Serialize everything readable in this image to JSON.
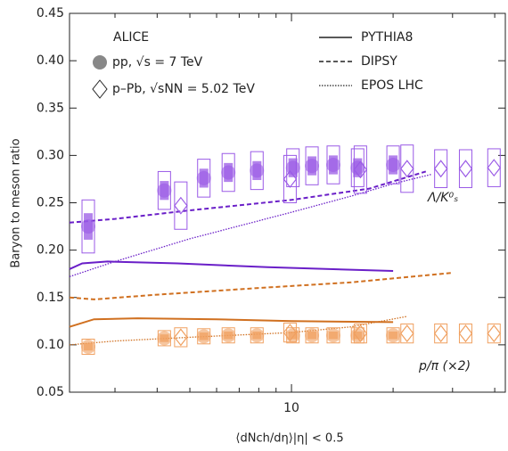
{
  "chart_data": {
    "type": "scatter",
    "y_label": "Baryon to meson ratio",
    "x_label": "⟨dNch/dη⟩|η| < 0.5",
    "experiment": "ALICE",
    "log_x": true,
    "xlim": [
      2.2,
      43
    ],
    "xticks": [
      10
    ],
    "xminor": [
      3,
      4,
      5,
      6,
      7,
      8,
      9,
      20,
      30,
      40
    ],
    "ylim": [
      0.05,
      0.45
    ],
    "yticks": [
      0.05,
      {
        "value": 0.1,
        "label": "0.10"
      },
      0.15,
      {
        "value": 0.2,
        "label": "0.20"
      },
      0.25,
      {
        "value": 0.3,
        "label": "0.30"
      },
      0.35,
      {
        "value": 0.4,
        "label": "0.40"
      },
      0.45
    ],
    "systems": [
      {
        "name": "pp, √s = 7 TeV",
        "marker": "circle"
      },
      {
        "name": "p–Pb, √sNN = 5.02 TeV",
        "marker": "diamond"
      }
    ],
    "ratios": [
      {
        "label": "Λ/K⁰ₛ",
        "color": "#9a5ae6",
        "line_color": "#6a1fc8"
      },
      {
        "label": "p/π (×2)",
        "color": "#f0a060",
        "line_color": "#d07020"
      }
    ],
    "series": [
      {
        "system": 0,
        "ratio": 0,
        "x": [
          2.5,
          4.2,
          5.5,
          6.5,
          7.9,
          10.1,
          11.5,
          13.3,
          15.7,
          20.0
        ],
        "values": [
          0.225,
          0.263,
          0.276,
          0.282,
          0.284,
          0.287,
          0.289,
          0.29,
          0.287,
          0.29
        ],
        "sys": [
          0.028,
          0.02,
          0.02,
          0.02,
          0.02,
          0.02,
          0.02,
          0.02,
          0.02,
          0.02
        ]
      },
      {
        "system": 1,
        "ratio": 0,
        "x": [
          4.7,
          9.9,
          16.0,
          22.0,
          27.7,
          32.8,
          39.8
        ],
        "values": [
          0.247,
          0.275,
          0.285,
          0.286,
          0.286,
          0.286,
          0.287
        ],
        "sys": [
          0.025,
          0.025,
          0.025,
          0.025,
          0.02,
          0.02,
          0.02
        ]
      },
      {
        "system": 0,
        "ratio": 1,
        "x": [
          2.5,
          4.2,
          5.5,
          6.5,
          7.9,
          10.1,
          11.5,
          13.3,
          15.7,
          20.0
        ],
        "values": [
          0.098,
          0.107,
          0.109,
          0.11,
          0.11,
          0.11,
          0.11,
          0.11,
          0.11,
          0.11
        ],
        "sys": [
          0.008,
          0.008,
          0.008,
          0.008,
          0.008,
          0.008,
          0.008,
          0.008,
          0.008,
          0.008
        ]
      },
      {
        "system": 1,
        "ratio": 1,
        "x": [
          4.7,
          9.9,
          16.0,
          22.0,
          27.7,
          32.8,
          39.8
        ],
        "values": [
          0.108,
          0.113,
          0.112,
          0.112,
          0.112,
          0.112,
          0.112
        ],
        "sys": [
          0.01,
          0.01,
          0.01,
          0.01,
          0.01,
          0.01,
          0.01
        ]
      }
    ],
    "models": [
      {
        "name": "PYTHIA8",
        "dash": "none"
      },
      {
        "name": "DIPSY",
        "dash": "5,3"
      },
      {
        "name": "EPOS LHC",
        "dash": "1.5,1.5"
      }
    ],
    "curves": [
      {
        "model": 0,
        "ratio": 0,
        "x": [
          2.2,
          2.4,
          2.85,
          4.6,
          8.5,
          20
        ],
        "values": [
          0.18,
          0.186,
          0.188,
          0.186,
          0.182,
          0.178
        ]
      },
      {
        "model": 1,
        "ratio": 0,
        "x": [
          2.2,
          3,
          5,
          10,
          17,
          25
        ],
        "values": [
          0.229,
          0.233,
          0.242,
          0.253,
          0.265,
          0.283
        ]
      },
      {
        "model": 2,
        "ratio": 0,
        "x": [
          2.2,
          3,
          5,
          10,
          15,
          20,
          26
        ],
        "values": [
          0.172,
          0.188,
          0.212,
          0.24,
          0.257,
          0.27,
          0.28
        ]
      },
      {
        "model": 0,
        "ratio": 1,
        "x": [
          2.2,
          2.6,
          3.5,
          6,
          10,
          20
        ],
        "values": [
          0.119,
          0.127,
          0.128,
          0.127,
          0.125,
          0.124
        ]
      },
      {
        "model": 1,
        "ratio": 1,
        "x": [
          2.2,
          2.6,
          4,
          8,
          15,
          30
        ],
        "values": [
          0.15,
          0.148,
          0.153,
          0.16,
          0.166,
          0.176
        ]
      },
      {
        "model": 2,
        "ratio": 1,
        "x": [
          2.2,
          3,
          5,
          10,
          15,
          22
        ],
        "values": [
          0.1,
          0.104,
          0.108,
          0.113,
          0.119,
          0.13
        ]
      }
    ]
  }
}
